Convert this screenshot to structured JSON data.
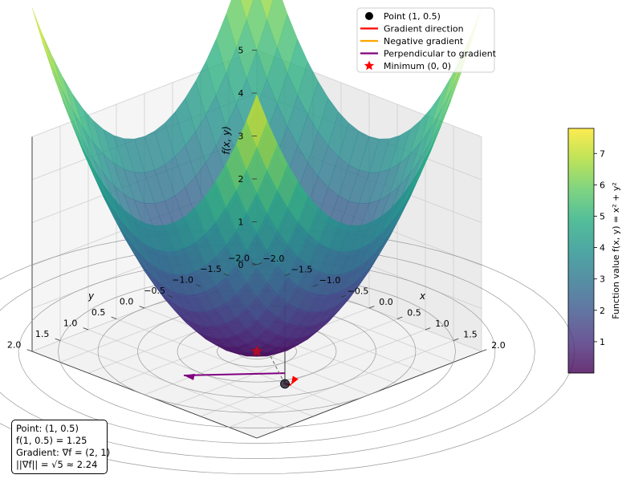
{
  "chart_data": {
    "type": "surface",
    "function": "f(x, y) = x^2 + y^2",
    "x_range": [
      -2.0,
      2.0
    ],
    "y_range": [
      -2.0,
      2.0
    ],
    "zlim": [
      0,
      5
    ],
    "x_ticks": [
      "2.0",
      "1.5",
      "1.0",
      "0.5",
      "0.0",
      "−0.5",
      "−1.0",
      "−1.5",
      "−2.0"
    ],
    "y_ticks": [
      "−2.0",
      "−1.5",
      "−1.0",
      "−0.5",
      "0.0",
      "0.5",
      "1.0",
      "1.5",
      "2.0"
    ],
    "z_ticks": [
      "0",
      "1",
      "2",
      "3",
      "4",
      "5"
    ],
    "xlabel": "x",
    "ylabel": "y",
    "zlabel": "f(x, y)",
    "colormap": "viridis",
    "colorbar": {
      "label": "Function value f(x, y) = x² + y²",
      "range": [
        0,
        7.8
      ],
      "ticks": [
        "1",
        "2",
        "3",
        "4",
        "5",
        "6",
        "7"
      ]
    },
    "point": {
      "x": 1,
      "y": 0.5,
      "z": 1.25
    },
    "minimum": {
      "x": 0,
      "y": 0,
      "z": 0
    },
    "gradient": [
      2,
      1
    ],
    "contour_levels": [
      0.25,
      0.5,
      1.0,
      1.5,
      2.0,
      2.5,
      3.0,
      3.5,
      4.0
    ],
    "legend": [
      {
        "label": "Point (1, 0.5)",
        "marker": "dot",
        "color": "#000000"
      },
      {
        "label": "Gradient direction",
        "marker": "line",
        "color": "#ff0000"
      },
      {
        "label": "Negative gradient",
        "marker": "line",
        "color": "#ffa500"
      },
      {
        "label": "Perpendicular to gradient",
        "marker": "line",
        "color": "#800080"
      },
      {
        "label": "Minimum (0, 0)",
        "marker": "star",
        "color": "#ff0000"
      }
    ],
    "info_box": [
      "Point: (1, 0.5)",
      "f(1, 0.5) = 1.25",
      "Gradient: ∇f = (2, 1)",
      "||∇f|| = √5 ≈ 2.24"
    ]
  }
}
